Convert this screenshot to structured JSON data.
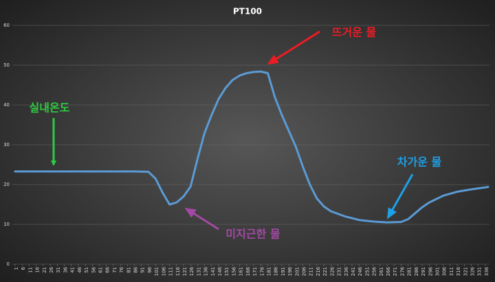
{
  "chart_data": {
    "type": "line",
    "title": "PT100",
    "x": [
      1,
      86,
      96,
      101,
      106,
      111,
      116,
      121,
      126,
      131,
      136,
      141,
      146,
      151,
      156,
      161,
      166,
      171,
      176,
      181,
      186,
      191,
      196,
      201,
      206,
      211,
      216,
      221,
      226,
      236,
      246,
      256,
      266,
      276,
      281,
      286,
      291,
      296,
      306,
      316,
      326,
      338
    ],
    "values": [
      23.3,
      23.3,
      23.2,
      21.5,
      18,
      15,
      15.5,
      17,
      19.5,
      26.5,
      33,
      37.5,
      41.5,
      44.3,
      46.3,
      47.4,
      48,
      48.3,
      48.4,
      48,
      42,
      37.5,
      33.5,
      29.5,
      24.5,
      20,
      16.5,
      14.5,
      13.3,
      12,
      11.1,
      10.7,
      10.5,
      10.6,
      11.3,
      12.8,
      14.3,
      15.5,
      17.2,
      18.2,
      18.8,
      19.4
    ],
    "color": "#5b9bd5",
    "xlim": [
      1,
      338
    ],
    "xticks": [
      1,
      6,
      11,
      16,
      21,
      26,
      31,
      36,
      41,
      46,
      51,
      56,
      61,
      66,
      71,
      76,
      81,
      86,
      91,
      96,
      101,
      106,
      111,
      116,
      121,
      126,
      131,
      136,
      141,
      146,
      151,
      156,
      161,
      166,
      171,
      176,
      181,
      186,
      191,
      196,
      201,
      206,
      211,
      216,
      221,
      226,
      231,
      236,
      241,
      246,
      251,
      256,
      261,
      266,
      271,
      276,
      281,
      286,
      291,
      296,
      301,
      306,
      311,
      316,
      321,
      326,
      331,
      336
    ],
    "ylim": [
      0,
      60
    ],
    "yticks": [
      0,
      10,
      20,
      30,
      40,
      50,
      60
    ],
    "grid": true,
    "annotations": [
      {
        "text": "실내온도"
      },
      {
        "text": "뜨거운 물"
      },
      {
        "text": "미지근한 물"
      },
      {
        "text": "차가운 물"
      }
    ]
  }
}
